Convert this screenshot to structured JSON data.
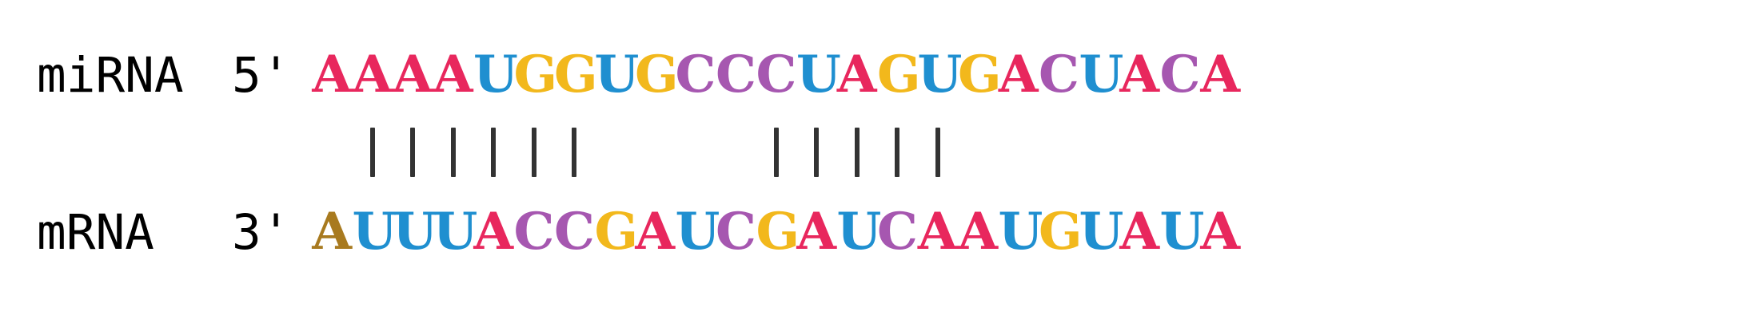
{
  "colors": {
    "A": "#e8275d",
    "U": "#1f8fd0",
    "G": "#f2b81c",
    "C": "#a657b0",
    "highlight": "#a87a1f",
    "bond": "#333333"
  },
  "mirna": {
    "label": "miRNA",
    "end": "5'",
    "sequence": "AAAAUGGUGCCCUAGUGACUACA"
  },
  "mrna": {
    "label": "mRNA",
    "end": "3'",
    "sequence": "AUUUACCGAUCGAUCAAUGUAUA",
    "highlight_index": 0
  },
  "pairing": {
    "paired_positions": [
      1,
      2,
      3,
      4,
      5,
      6,
      11,
      12,
      13,
      14,
      15
    ]
  }
}
